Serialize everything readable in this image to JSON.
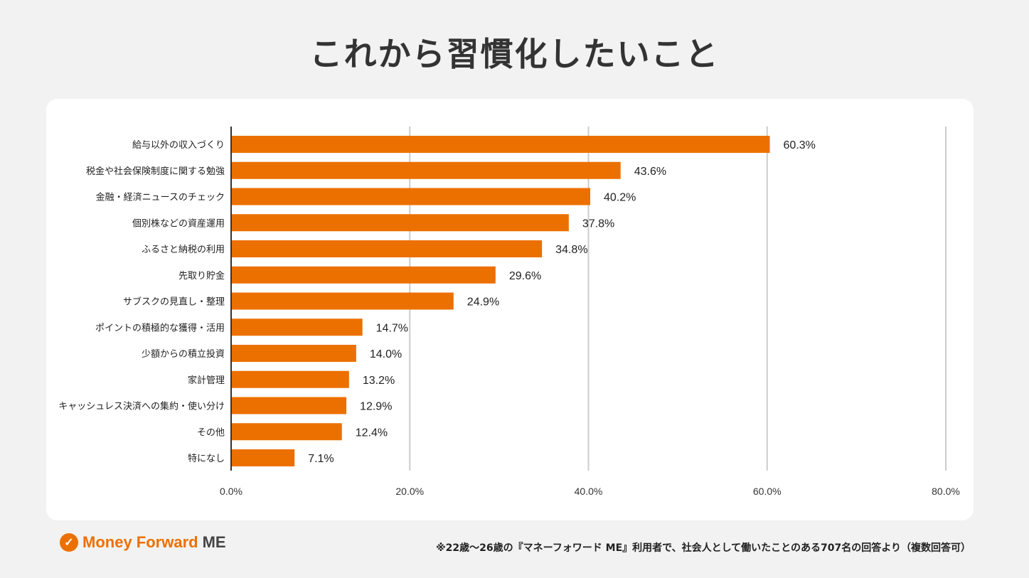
{
  "title": "これから習慣化したいこと",
  "footer": {
    "logo_text": "Money Forward",
    "logo_suffix": "ME",
    "note": "※22歳〜26歳の『マネーフォワード ME』利用者で、社会人として働いたことのある707名の回答より（複数回答可）"
  },
  "colors": {
    "bar": "#ec7000",
    "grid": "#cccccc",
    "axis": "#333333"
  },
  "chart_data": {
    "type": "bar",
    "orientation": "horizontal",
    "categories": [
      "給与以外の収入づくり",
      "税金や社会保険制度に関する勉強",
      "金融・経済ニュースのチェック",
      "個別株などの資産運用",
      "ふるさと納税の利用",
      "先取り貯金",
      "サブスクの見直し・整理",
      "ポイントの積極的な獲得・活用",
      "少額からの積立投資",
      "家計管理",
      "キャッシュレス決済への集約・使い分け",
      "その他",
      "特になし"
    ],
    "values": [
      60.3,
      43.6,
      40.2,
      37.8,
      34.8,
      29.6,
      24.9,
      14.7,
      14.0,
      13.2,
      12.9,
      12.4,
      7.1
    ],
    "data_labels": [
      "60.3%",
      "43.6%",
      "40.2%",
      "37.8%",
      "34.8%",
      "29.6%",
      "24.9%",
      "14.7%",
      "14.0%",
      "13.2%",
      "12.9%",
      "12.4%",
      "7.1%"
    ],
    "xlim": [
      0,
      80
    ],
    "x_ticks": [
      0,
      20,
      40,
      60,
      80
    ],
    "x_tick_labels": [
      "0.0%",
      "20.0%",
      "40.0%",
      "60.0%",
      "80.0%"
    ],
    "grid": true,
    "legend": "none"
  }
}
